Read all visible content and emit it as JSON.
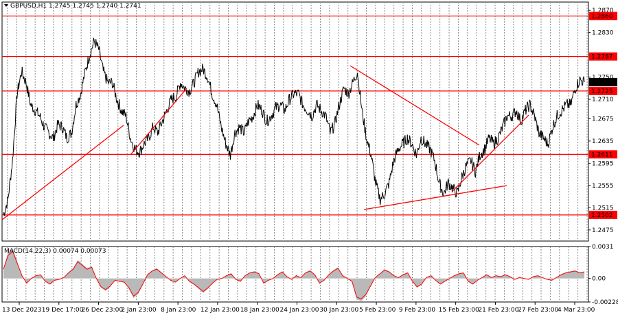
{
  "chart_data": [
    {
      "type": "candlestick",
      "title": "GBPUSD,H1  1.2745 1.2745 1.2740 1.2741",
      "symbol": "GBPUSD",
      "timeframe": "H1",
      "ohlc": {
        "open": 1.2745,
        "high": 1.2745,
        "low": 1.274,
        "close": 1.2741
      },
      "y_ticks": [
        "1.2870",
        "1.2830",
        "1.2790",
        "1.2750",
        "1.2710",
        "1.2675",
        "1.2635",
        "1.2595",
        "1.2555",
        "1.2515",
        "1.2475"
      ],
      "ylim": [
        1.2455,
        1.2885
      ],
      "x_ticks": [
        "13 Dec 2023",
        "19 Dec 17:00",
        "26 Dec 23:00",
        "2 Jan 23:00",
        "8 Jan 23:00",
        "12 Jan 23:00",
        "18 Jan 23:00",
        "24 Jan 23:00",
        "30 Jan 23:00",
        "5 Feb 23:00",
        "9 Feb 23:00",
        "15 Feb 23:00",
        "21 Feb 23:00",
        "27 Feb 23:00",
        "4 Mar 23:00"
      ],
      "levels": [
        {
          "value": 1.286,
          "label": "1.2860",
          "color": "#ff0000"
        },
        {
          "value": 1.2787,
          "label": "1.2787",
          "color": "#ff0000"
        },
        {
          "value": 1.2725,
          "label": "1.2725",
          "color": "#ff0000"
        },
        {
          "value": 1.2611,
          "label": "1.2611",
          "color": "#ff0000"
        },
        {
          "value": 1.2502,
          "label": "1.2502",
          "color": "#ff0000"
        }
      ],
      "current_price": {
        "value": 1.2741,
        "label": "1.2741",
        "color": "#000000"
      },
      "trendlines": [
        {
          "from": {
            "x": "13 Dec 2023",
            "y": 1.2502
          },
          "to": {
            "x": "2 Jan 12:00",
            "y": 1.266
          }
        },
        {
          "from": {
            "x": "3 Jan 12:00",
            "y": 1.2615
          },
          "to": {
            "x": "10 Jan 20:00",
            "y": 1.2725
          }
        },
        {
          "from": {
            "x": "31 Jan 20:00",
            "y": 1.2765
          },
          "to": {
            "x": "19 Feb 16:00",
            "y": 1.263
          }
        },
        {
          "from": {
            "x": "5 Feb 20:00",
            "y": 1.252
          },
          "to": {
            "x": "22 Feb 23:00",
            "y": 1.2565
          }
        },
        {
          "from": {
            "x": "15 Feb 20:00",
            "y": 1.255
          },
          "to": {
            "x": "23 Feb 16:00",
            "y": 1.268
          }
        }
      ],
      "series": [
        {
          "type": "line",
          "close": [
            1.2502,
            1.253,
            1.26,
            1.272,
            1.276,
            1.274,
            1.27,
            1.269,
            1.268,
            1.266,
            1.265,
            1.264,
            1.2665,
            1.266,
            1.264,
            1.265,
            1.27,
            1.272,
            1.276,
            1.279,
            1.2815,
            1.28,
            1.276,
            1.274,
            1.274,
            1.271,
            1.269,
            1.268,
            1.264,
            1.262,
            1.2615,
            1.263,
            1.264,
            1.266,
            1.265,
            1.267,
            1.269,
            1.271,
            1.2715,
            1.274,
            1.273,
            1.2725,
            1.274,
            1.276,
            1.2765,
            1.275,
            1.272,
            1.27,
            1.266,
            1.263,
            1.261,
            1.265,
            1.266,
            1.265,
            1.267,
            1.268,
            1.27,
            1.269,
            1.267,
            1.268,
            1.2695,
            1.27,
            1.269,
            1.271,
            1.272,
            1.272,
            1.27,
            1.269,
            1.268,
            1.27,
            1.269,
            1.268,
            1.265,
            1.2665,
            1.27,
            1.273,
            1.272,
            1.274,
            1.276,
            1.269,
            1.264,
            1.261,
            1.256,
            1.253,
            1.254,
            1.256,
            1.26,
            1.262,
            1.263,
            1.264,
            1.263,
            1.261,
            1.264,
            1.263,
            1.262,
            1.26,
            1.256,
            1.254,
            1.256,
            1.255,
            1.254,
            1.257,
            1.259,
            1.26,
            1.258,
            1.261,
            1.262,
            1.264,
            1.263,
            1.264,
            1.266,
            1.268,
            1.268,
            1.269,
            1.267,
            1.269,
            1.27,
            1.268,
            1.265,
            1.264,
            1.263,
            1.266,
            1.268,
            1.269,
            1.27,
            1.27,
            1.273,
            1.2745,
            1.2741
          ]
        }
      ],
      "indicator": {
        "name": "MACD(14,22,3) 0.00074 0.00073",
        "y_ticks": [
          "0.0031",
          "0.00",
          "-0.00228"
        ],
        "ylim": [
          -0.00228,
          0.0031
        ],
        "histogram": [
          0.001,
          0.0025,
          0.0029,
          0.0016,
          0.0003,
          -0.0005,
          0.0,
          0.0003,
          0.0004,
          -0.0003,
          -0.0006,
          -0.0002,
          -0.0001,
          0.0001,
          0.0006,
          0.001,
          0.0018,
          0.0014,
          0.001,
          0.0012,
          0.0,
          -0.0009,
          -0.0012,
          -0.0008,
          -0.0002,
          -0.0003,
          -0.0004,
          -0.001,
          -0.0019,
          -0.0015,
          -0.0006,
          0.0004,
          0.0008,
          0.001,
          0.0006,
          0.0002,
          -0.0002,
          -0.0004,
          0.0,
          0.0003,
          -0.0003,
          -0.0006,
          -0.001,
          -0.0014,
          -0.001,
          -0.0005,
          -0.0001,
          0.0,
          0.0003,
          0.0005,
          -0.0001,
          -0.0003,
          0.0003,
          0.0006,
          0.0007,
          0.0005,
          -0.0005,
          -0.0002,
          0.0,
          0.0004,
          0.0007,
          0.0002,
          -0.0001,
          0.0003,
          0.0001,
          0.0006,
          0.0008,
          0.0004,
          -0.0005,
          -0.0002,
          0.0004,
          0.0008,
          0.0011,
          0.0003,
          0.0,
          -0.0003,
          -0.002,
          -0.0022,
          -0.0017,
          -0.0008,
          0.0001,
          0.0005,
          0.0009,
          0.0007,
          0.0003,
          0.0001,
          0.0004,
          0.0006,
          -0.0003,
          -0.0009,
          -0.0006,
          0.0001,
          0.0003,
          -0.0002,
          -0.0006,
          -0.0003,
          0.0,
          0.0003,
          0.0005,
          0.0006,
          -0.0003,
          -0.0006,
          -0.0002,
          0.0001,
          0.0004,
          0.0001,
          0.0003,
          0.0002,
          0.0004,
          0.0002,
          -0.0001,
          0.0001,
          0.0,
          -0.0001,
          0.0002,
          0.0003,
          0.0001,
          -0.0001,
          -0.0002,
          0.0001,
          0.0004,
          0.0006,
          0.0007,
          0.0008,
          0.0006,
          0.0007
        ]
      }
    }
  ]
}
